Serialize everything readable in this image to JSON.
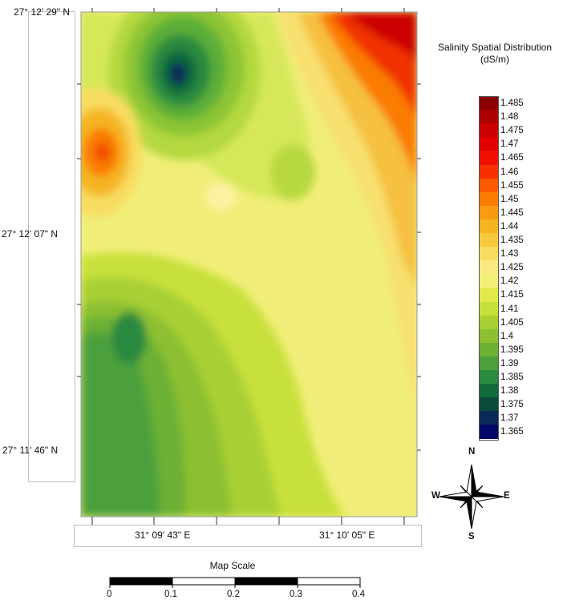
{
  "map": {
    "latitude_labels": [
      "27° 12' 29\" N",
      "27° 12' 07\" N",
      "27° 11' 46\" N"
    ],
    "longitude_labels": [
      "31° 09' 43\" E",
      "31° 10' 05\" E"
    ]
  },
  "legend": {
    "title_line1": "Salinity Spatial Distribution",
    "title_line2": "(dS/m)",
    "levels": [
      "1.485",
      "1.48",
      "1.475",
      "1.47",
      "1.465",
      "1.46",
      "1.455",
      "1.45",
      "1.445",
      "1.44",
      "1.435",
      "1.43",
      "1.425",
      "1.42",
      "1.415",
      "1.41",
      "1.405",
      "1.4",
      "1.395",
      "1.39",
      "1.385",
      "1.38",
      "1.375",
      "1.37",
      "1.365"
    ],
    "colors": [
      "#8b0000",
      "#ad0000",
      "#cc0000",
      "#e00000",
      "#f01000",
      "#f83000",
      "#fa5a00",
      "#fa7c00",
      "#f99b10",
      "#f6b420",
      "#f6c840",
      "#f8dc60",
      "#f8ea80",
      "#f3f07a",
      "#e2ea4a",
      "#c8e03a",
      "#a8d034",
      "#8cc030",
      "#6cb034",
      "#4ca03c",
      "#2a8a40",
      "#106a3a",
      "#0a4a3a",
      "#0a2a5a",
      "#000a66"
    ]
  },
  "compass": {
    "n": "N",
    "s": "S",
    "e": "E",
    "w": "W"
  },
  "scale_bar": {
    "title": "Map Scale",
    "ticks": [
      "0",
      "0.1",
      "0.2",
      "0.3",
      "0.4"
    ]
  }
}
